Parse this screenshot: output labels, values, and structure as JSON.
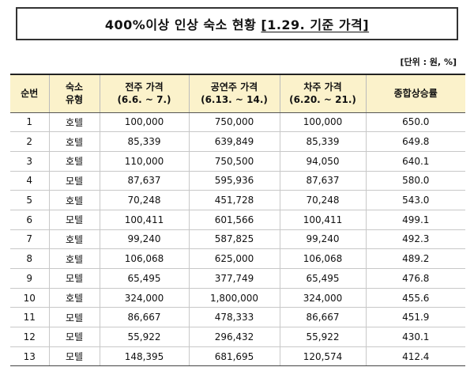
{
  "title": {
    "main": "400%이상 인상 숙소 현황 ",
    "underlined": "[1.29. 기준 가격]"
  },
  "unit": "[단위 : 원, %]",
  "table": {
    "headers": [
      {
        "line1": "순번",
        "line2": ""
      },
      {
        "line1": "숙소",
        "line2": "유형"
      },
      {
        "line1": "전주 가격",
        "line2": "(6.6. ~ 7.)"
      },
      {
        "line1": "공연주 가격",
        "line2": "(6.13. ~ 14.)"
      },
      {
        "line1": "차주 가격",
        "line2": "(6.20. ~ 21.)"
      },
      {
        "line1": "종합상승률",
        "line2": ""
      }
    ],
    "rows": [
      [
        "1",
        "호텔",
        "100,000",
        "750,000",
        "100,000",
        "650.0"
      ],
      [
        "2",
        "호텔",
        "85,339",
        "639,849",
        "85,339",
        "649.8"
      ],
      [
        "3",
        "호텔",
        "110,000",
        "750,500",
        "94,050",
        "640.1"
      ],
      [
        "4",
        "모텔",
        "87,637",
        "595,936",
        "87,637",
        "580.0"
      ],
      [
        "5",
        "호텔",
        "70,248",
        "451,728",
        "70,248",
        "543.0"
      ],
      [
        "6",
        "모텔",
        "100,411",
        "601,566",
        "100,411",
        "499.1"
      ],
      [
        "7",
        "호텔",
        "99,240",
        "587,825",
        "99,240",
        "492.3"
      ],
      [
        "8",
        "호텔",
        "106,068",
        "625,000",
        "106,068",
        "489.2"
      ],
      [
        "9",
        "모텔",
        "65,495",
        "377,749",
        "65,495",
        "476.8"
      ],
      [
        "10",
        "호텔",
        "324,000",
        "1,800,000",
        "324,000",
        "455.6"
      ],
      [
        "11",
        "모텔",
        "86,667",
        "478,333",
        "86,667",
        "451.9"
      ],
      [
        "12",
        "모텔",
        "55,922",
        "296,432",
        "55,922",
        "430.1"
      ],
      [
        "13",
        "모텔",
        "148,395",
        "681,695",
        "120,574",
        "412.4"
      ]
    ]
  },
  "colors": {
    "header_bg": "#fbf2cb",
    "border_dark": "#222222",
    "border_light": "#c8c8c8"
  }
}
